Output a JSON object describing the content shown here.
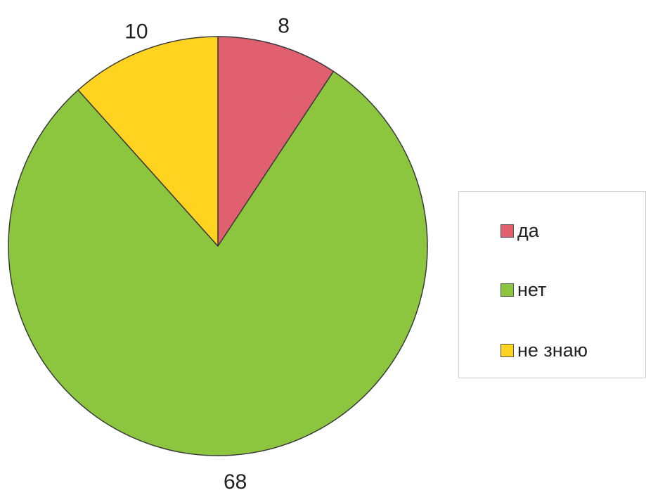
{
  "chart_data": {
    "type": "pie",
    "title": "",
    "categories": [
      "да",
      "нет",
      "не знаю"
    ],
    "values": [
      8,
      68,
      10
    ],
    "colors": [
      "#e06070",
      "#8cc63f",
      "#ffd320"
    ],
    "data_labels": [
      "8",
      "68",
      "10"
    ],
    "start_angle_deg": 0,
    "direction": "clockwise",
    "legend": {
      "placement": "right",
      "entries": [
        "да",
        "нет",
        "не знаю"
      ]
    }
  }
}
